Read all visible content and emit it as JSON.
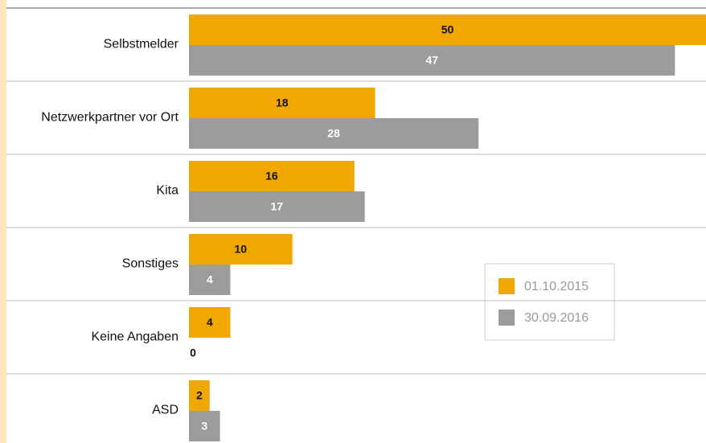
{
  "chart_data": {
    "type": "bar",
    "orientation": "horizontal",
    "categories": [
      "Selbstmelder",
      "Netzwerkpartner vor Ort",
      "Kita",
      "Sonstiges",
      "Keine Angaben",
      "ASD"
    ],
    "series": [
      {
        "name": "01.10.2015",
        "color": "#f0a800",
        "values": [
          50,
          18,
          16,
          10,
          4,
          2
        ]
      },
      {
        "name": "30.09.2016",
        "color": "#9c9c9c",
        "values": [
          47,
          28,
          17,
          4,
          0,
          3
        ]
      }
    ]
  }
}
